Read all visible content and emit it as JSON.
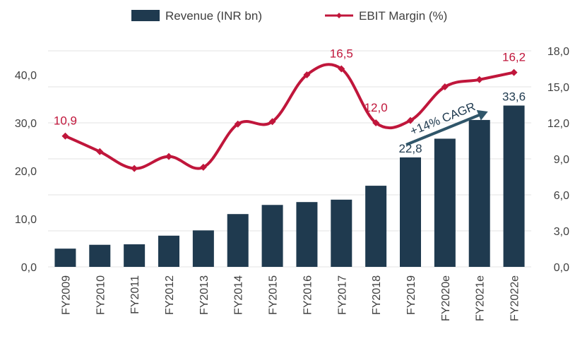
{
  "chart_data": {
    "type": "bar",
    "categories": [
      "FY2009",
      "FY2010",
      "FY2011",
      "FY2012",
      "FY2013",
      "FY2014",
      "FY2015",
      "FY2016",
      "FY2017",
      "FY2018",
      "FY2019",
      "FY2020e",
      "FY2021e",
      "FY2022e"
    ],
    "series": [
      {
        "name": "Revenue (INR bn)",
        "type": "bar",
        "axis": "left",
        "color": "#1f3a4f",
        "values": [
          3.8,
          4.6,
          4.7,
          6.5,
          7.6,
          11.0,
          12.9,
          13.5,
          14.0,
          16.9,
          22.8,
          26.7,
          30.6,
          33.6
        ]
      },
      {
        "name": "EBIT Margin (%)",
        "type": "line",
        "axis": "right",
        "color": "#c0163b",
        "values": [
          10.9,
          9.6,
          8.2,
          9.2,
          8.3,
          11.9,
          12.1,
          16.0,
          16.5,
          12.0,
          12.2,
          15.0,
          15.6,
          16.2
        ]
      }
    ],
    "y_left": {
      "ylim": [
        0,
        45
      ],
      "ticks": [
        "0,0",
        "10,0",
        "20,0",
        "30,0",
        "40,0"
      ],
      "tick_values": [
        0,
        10,
        20,
        30,
        40
      ]
    },
    "y_right": {
      "ylim": [
        0,
        18
      ],
      "ticks": [
        "0,0",
        "3,0",
        "6,0",
        "9,0",
        "12,0",
        "15,0",
        "18,0"
      ],
      "tick_values": [
        0,
        3,
        6,
        9,
        12,
        15,
        18
      ]
    },
    "grid": true,
    "legend": "top-center",
    "data_labels": {
      "revenue": [
        {
          "index": 10,
          "text": "22,8"
        },
        {
          "index": 13,
          "text": "33,6"
        }
      ],
      "ebit": [
        {
          "index": 0,
          "text": "10,9"
        },
        {
          "index": 8,
          "text": "16,5"
        },
        {
          "index": 9,
          "text": "12,0"
        },
        {
          "index": 13,
          "text": "16,2"
        }
      ]
    },
    "annotation": {
      "text": "+14% CAGR",
      "from_index": 10,
      "to_index": 12
    }
  }
}
